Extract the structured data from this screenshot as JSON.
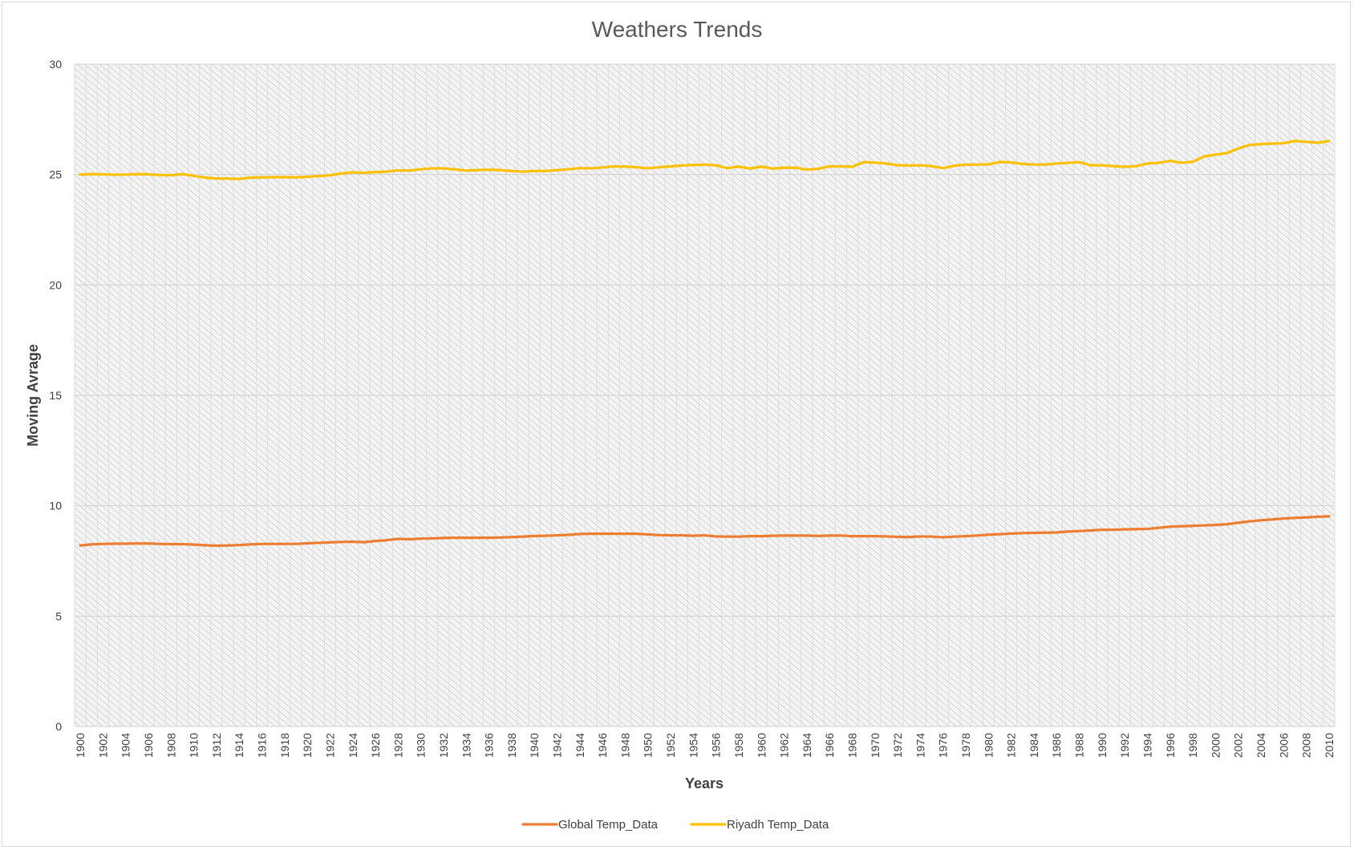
{
  "chart_data": {
    "type": "line",
    "title": "Weathers Trends",
    "xlabel": "Years",
    "ylabel": "Moving Avrage",
    "ylim": [
      0,
      30
    ],
    "y_ticks": [
      0,
      5,
      10,
      15,
      20,
      25,
      30
    ],
    "x_tick_labels_every": 2,
    "grid": true,
    "plot_background": "hatched light gray",
    "legend_position": "bottom",
    "x": [
      1900,
      1901,
      1902,
      1903,
      1904,
      1905,
      1906,
      1907,
      1908,
      1909,
      1910,
      1911,
      1912,
      1913,
      1914,
      1915,
      1916,
      1917,
      1918,
      1919,
      1920,
      1921,
      1922,
      1923,
      1924,
      1925,
      1926,
      1927,
      1928,
      1929,
      1930,
      1931,
      1932,
      1933,
      1934,
      1935,
      1936,
      1937,
      1938,
      1939,
      1940,
      1941,
      1942,
      1943,
      1944,
      1945,
      1946,
      1947,
      1948,
      1949,
      1950,
      1951,
      1952,
      1953,
      1954,
      1955,
      1956,
      1957,
      1958,
      1959,
      1960,
      1961,
      1962,
      1963,
      1964,
      1965,
      1966,
      1967,
      1968,
      1969,
      1970,
      1971,
      1972,
      1973,
      1974,
      1975,
      1976,
      1977,
      1978,
      1979,
      1980,
      1981,
      1982,
      1983,
      1984,
      1985,
      1986,
      1987,
      1988,
      1989,
      1990,
      1991,
      1992,
      1993,
      1994,
      1995,
      1996,
      1997,
      1998,
      1999,
      2000,
      2001,
      2002,
      2003,
      2004,
      2005,
      2006,
      2007,
      2008,
      2009,
      2010
    ],
    "series": [
      {
        "name": "Global Temp_Data",
        "color": "#ED7D31",
        "values": [
          8.2,
          8.25,
          8.27,
          8.28,
          8.28,
          8.29,
          8.29,
          8.27,
          8.26,
          8.26,
          8.24,
          8.21,
          8.19,
          8.2,
          8.22,
          8.25,
          8.27,
          8.27,
          8.27,
          8.27,
          8.3,
          8.32,
          8.34,
          8.36,
          8.37,
          8.35,
          8.4,
          8.44,
          8.5,
          8.48,
          8.51,
          8.52,
          8.54,
          8.55,
          8.55,
          8.55,
          8.55,
          8.56,
          8.58,
          8.6,
          8.63,
          8.64,
          8.66,
          8.68,
          8.72,
          8.73,
          8.73,
          8.73,
          8.73,
          8.73,
          8.7,
          8.67,
          8.66,
          8.66,
          8.64,
          8.66,
          8.61,
          8.6,
          8.6,
          8.62,
          8.62,
          8.64,
          8.65,
          8.65,
          8.65,
          8.63,
          8.65,
          8.65,
          8.62,
          8.62,
          8.62,
          8.61,
          8.59,
          8.58,
          8.61,
          8.6,
          8.57,
          8.6,
          8.62,
          8.65,
          8.69,
          8.71,
          8.74,
          8.76,
          8.77,
          8.78,
          8.79,
          8.83,
          8.85,
          8.88,
          8.91,
          8.91,
          8.93,
          8.94,
          8.95,
          9.0,
          9.05,
          9.07,
          9.09,
          9.11,
          9.13,
          9.16,
          9.23,
          9.29,
          9.34,
          9.38,
          9.42,
          9.45,
          9.47,
          9.5,
          9.52
        ]
      },
      {
        "name": "Riyadh Temp_Data",
        "color": "#FFC000",
        "values": [
          25.0,
          25.02,
          25.01,
          24.99,
          25.0,
          25.02,
          25.01,
          24.98,
          24.97,
          25.02,
          24.94,
          24.86,
          24.82,
          24.82,
          24.8,
          24.86,
          24.87,
          24.88,
          24.88,
          24.87,
          24.9,
          24.93,
          24.97,
          25.05,
          25.1,
          25.08,
          25.11,
          25.13,
          25.19,
          25.18,
          25.24,
          25.28,
          25.28,
          25.23,
          25.18,
          25.2,
          25.22,
          25.2,
          25.16,
          25.13,
          25.16,
          25.16,
          25.2,
          25.24,
          25.29,
          25.28,
          25.32,
          25.37,
          25.36,
          25.33,
          25.28,
          25.33,
          25.37,
          25.41,
          25.43,
          25.45,
          25.42,
          25.29,
          25.36,
          25.27,
          25.36,
          25.27,
          25.31,
          25.31,
          25.22,
          25.26,
          25.37,
          25.37,
          25.35,
          25.56,
          25.54,
          25.5,
          25.42,
          25.41,
          25.42,
          25.38,
          25.29,
          25.4,
          25.45,
          25.45,
          25.46,
          25.57,
          25.55,
          25.48,
          25.45,
          25.45,
          25.5,
          25.53,
          25.56,
          25.42,
          25.42,
          25.38,
          25.35,
          25.38,
          25.5,
          25.53,
          25.62,
          25.53,
          25.58,
          25.82,
          25.9,
          25.97,
          26.18,
          26.34,
          26.38,
          26.4,
          26.42,
          26.52,
          26.48,
          26.44,
          26.52
        ]
      }
    ]
  }
}
